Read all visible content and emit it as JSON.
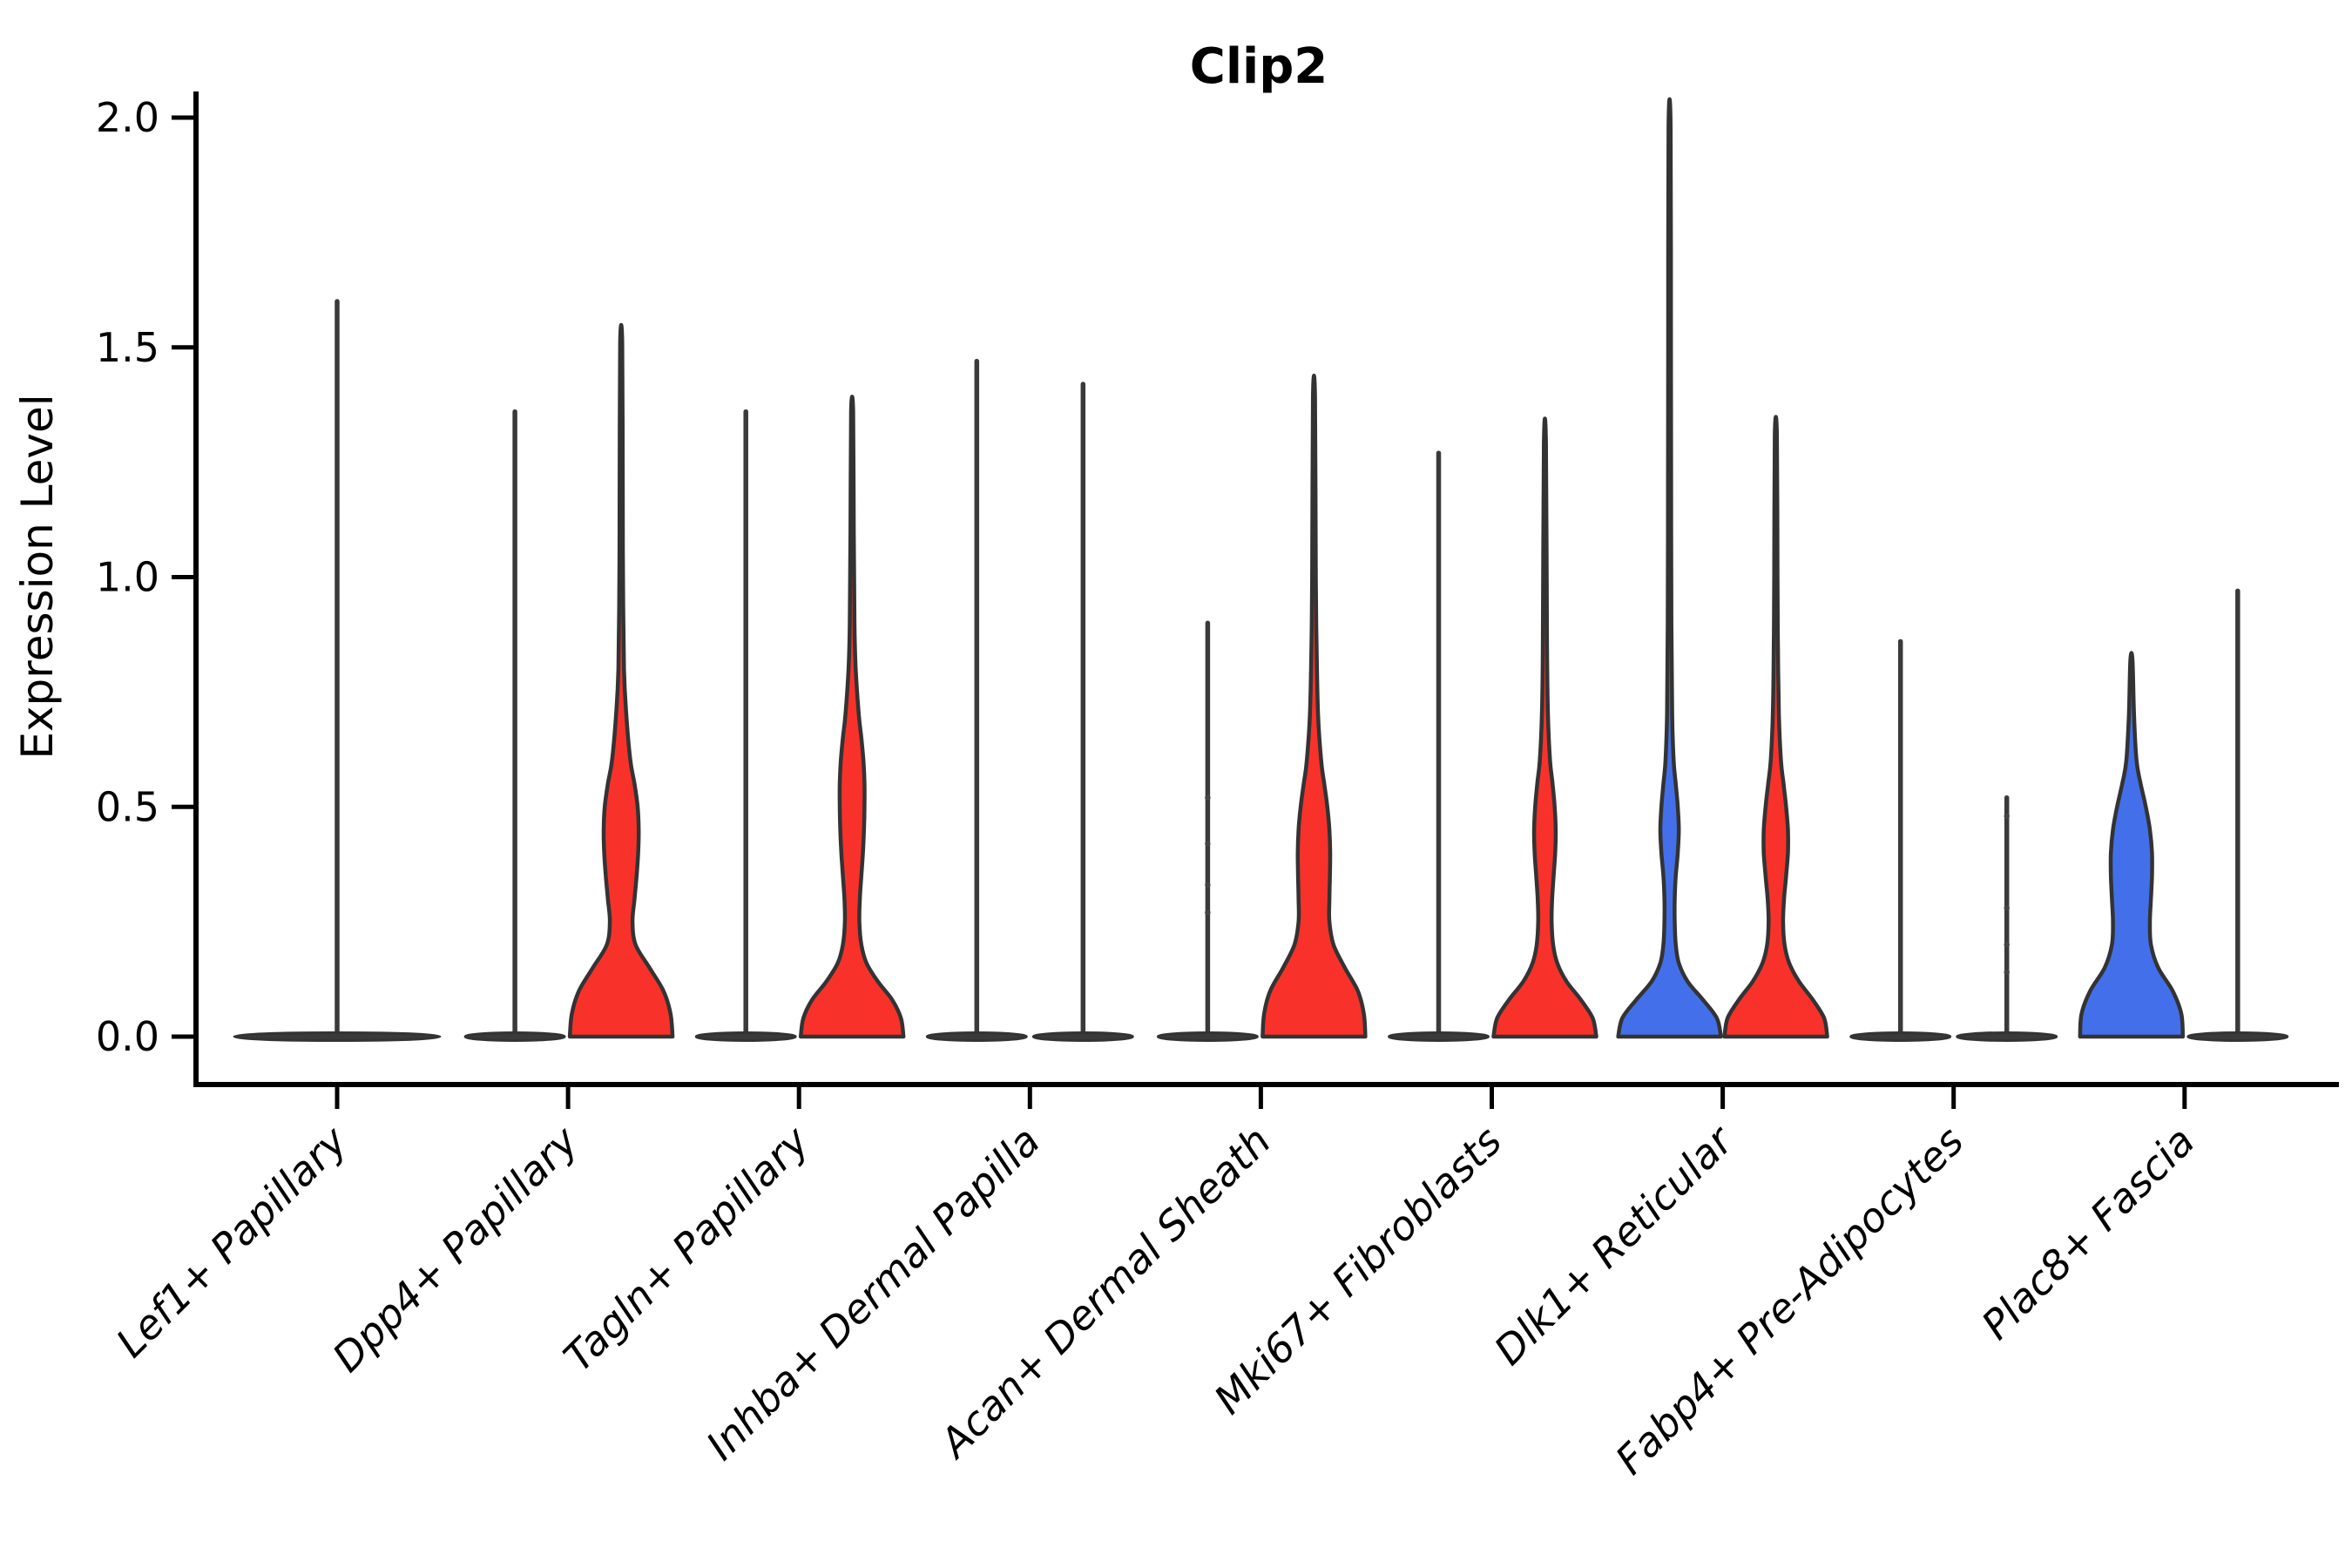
{
  "title": "Clip2",
  "ylabel": "Expression Level",
  "chart_data": {
    "type": "violin",
    "title": "Clip2",
    "xlabel": "",
    "ylabel": "Expression Level",
    "ylim": [
      0.0,
      2.0
    ],
    "yticks": [
      0.0,
      0.5,
      1.0,
      1.5,
      2.0
    ],
    "ytick_labels": [
      "0.0",
      "0.5",
      "1.0",
      "1.5",
      "2.0"
    ],
    "grid": false,
    "legend": "none",
    "categories": [
      "Lef1+ Papillary",
      "Dpp4+ Papillary",
      "Tagln+ Papillary",
      "Inhba+ Dermal Papilla",
      "Acan+ Dermal Sheath",
      "Mki67+ Fibroblasts",
      "Dlk1+ Reticular",
      "Fabp4+ Pre-Adipocytes",
      "Plac8+ Fascia"
    ],
    "colors": {
      "red": "#F8322B",
      "blue": "#4370EA",
      "flat_fill": "#3a3a3a",
      "outline": "#333333",
      "axis": "#000000"
    },
    "violins": [
      {
        "cat": 0,
        "position": "center",
        "color": "flat",
        "max": 1.6,
        "flat": true,
        "dots": []
      },
      {
        "cat": 1,
        "position": "left",
        "color": "flat",
        "max": 1.36,
        "flat": true,
        "dots": []
      },
      {
        "cat": 1,
        "position": "right",
        "color": "red",
        "max": 1.51,
        "flat": false,
        "dots": [],
        "profile": [
          [
            0,
            1.0
          ],
          [
            0.05,
            0.96
          ],
          [
            0.1,
            0.82
          ],
          [
            0.15,
            0.55
          ],
          [
            0.2,
            0.28
          ],
          [
            0.25,
            0.22
          ],
          [
            0.3,
            0.26
          ],
          [
            0.35,
            0.3
          ],
          [
            0.4,
            0.33
          ],
          [
            0.45,
            0.34
          ],
          [
            0.5,
            0.32
          ],
          [
            0.55,
            0.26
          ],
          [
            0.6,
            0.18
          ],
          [
            0.7,
            0.1
          ],
          [
            0.8,
            0.055
          ],
          [
            1.0,
            0.035
          ],
          [
            1.2,
            0.03
          ],
          [
            1.51,
            0.02
          ]
        ]
      },
      {
        "cat": 2,
        "position": "left",
        "color": "flat",
        "max": 1.36,
        "flat": true,
        "dots": []
      },
      {
        "cat": 2,
        "position": "right",
        "color": "red",
        "max": 1.36,
        "flat": false,
        "dots": [],
        "profile": [
          [
            0,
            1.0
          ],
          [
            0.04,
            0.95
          ],
          [
            0.08,
            0.78
          ],
          [
            0.12,
            0.5
          ],
          [
            0.16,
            0.28
          ],
          [
            0.2,
            0.18
          ],
          [
            0.25,
            0.14
          ],
          [
            0.3,
            0.15
          ],
          [
            0.35,
            0.18
          ],
          [
            0.4,
            0.21
          ],
          [
            0.45,
            0.23
          ],
          [
            0.5,
            0.24
          ],
          [
            0.55,
            0.24
          ],
          [
            0.6,
            0.22
          ],
          [
            0.65,
            0.18
          ],
          [
            0.7,
            0.13
          ],
          [
            0.8,
            0.07
          ],
          [
            0.9,
            0.045
          ],
          [
            1.1,
            0.032
          ],
          [
            1.36,
            0.02
          ]
        ]
      },
      {
        "cat": 3,
        "position": "left",
        "color": "flat",
        "max": 1.47,
        "flat": true,
        "dots": []
      },
      {
        "cat": 3,
        "position": "right",
        "color": "flat",
        "max": 1.42,
        "flat": true,
        "dots": []
      },
      {
        "cat": 4,
        "position": "left",
        "color": "flat",
        "max": 0.9,
        "flat": true,
        "dots": [
          0.27,
          0.33,
          0.42,
          0.52
        ]
      },
      {
        "cat": 4,
        "position": "right",
        "color": "red",
        "max": 1.39,
        "flat": false,
        "dots": [],
        "profile": [
          [
            0,
            1.0
          ],
          [
            0.05,
            0.97
          ],
          [
            0.1,
            0.85
          ],
          [
            0.15,
            0.6
          ],
          [
            0.2,
            0.38
          ],
          [
            0.25,
            0.3
          ],
          [
            0.3,
            0.3
          ],
          [
            0.35,
            0.31
          ],
          [
            0.4,
            0.315
          ],
          [
            0.45,
            0.3
          ],
          [
            0.5,
            0.26
          ],
          [
            0.55,
            0.2
          ],
          [
            0.6,
            0.14
          ],
          [
            0.7,
            0.08
          ],
          [
            0.85,
            0.05
          ],
          [
            1.0,
            0.035
          ],
          [
            1.39,
            0.02
          ]
        ]
      },
      {
        "cat": 5,
        "position": "left",
        "color": "flat",
        "max": 1.27,
        "flat": true,
        "dots": []
      },
      {
        "cat": 5,
        "position": "right",
        "color": "red",
        "max": 1.29,
        "flat": false,
        "dots": [],
        "profile": [
          [
            0,
            1.0
          ],
          [
            0.04,
            0.93
          ],
          [
            0.08,
            0.7
          ],
          [
            0.12,
            0.42
          ],
          [
            0.16,
            0.24
          ],
          [
            0.2,
            0.16
          ],
          [
            0.25,
            0.13
          ],
          [
            0.3,
            0.14
          ],
          [
            0.35,
            0.17
          ],
          [
            0.4,
            0.2
          ],
          [
            0.45,
            0.21
          ],
          [
            0.5,
            0.19
          ],
          [
            0.55,
            0.15
          ],
          [
            0.6,
            0.1
          ],
          [
            0.7,
            0.06
          ],
          [
            0.85,
            0.04
          ],
          [
            1.29,
            0.02
          ]
        ]
      },
      {
        "cat": 6,
        "position": "left",
        "color": "blue",
        "max": 1.98,
        "flat": false,
        "dots": [],
        "profile": [
          [
            0,
            1.0
          ],
          [
            0.04,
            0.92
          ],
          [
            0.08,
            0.65
          ],
          [
            0.12,
            0.35
          ],
          [
            0.16,
            0.18
          ],
          [
            0.2,
            0.12
          ],
          [
            0.25,
            0.1
          ],
          [
            0.3,
            0.1
          ],
          [
            0.35,
            0.12
          ],
          [
            0.4,
            0.16
          ],
          [
            0.45,
            0.18
          ],
          [
            0.5,
            0.16
          ],
          [
            0.55,
            0.12
          ],
          [
            0.6,
            0.08
          ],
          [
            0.7,
            0.05
          ],
          [
            0.9,
            0.035
          ],
          [
            1.2,
            0.03
          ],
          [
            1.5,
            0.027
          ],
          [
            1.98,
            0.02
          ]
        ]
      },
      {
        "cat": 6,
        "position": "right",
        "color": "red",
        "max": 1.31,
        "flat": false,
        "dots": [],
        "profile": [
          [
            0,
            1.0
          ],
          [
            0.04,
            0.94
          ],
          [
            0.08,
            0.72
          ],
          [
            0.12,
            0.45
          ],
          [
            0.16,
            0.26
          ],
          [
            0.2,
            0.17
          ],
          [
            0.25,
            0.14
          ],
          [
            0.3,
            0.16
          ],
          [
            0.35,
            0.2
          ],
          [
            0.4,
            0.235
          ],
          [
            0.45,
            0.235
          ],
          [
            0.5,
            0.2
          ],
          [
            0.55,
            0.15
          ],
          [
            0.6,
            0.1
          ],
          [
            0.7,
            0.06
          ],
          [
            0.85,
            0.04
          ],
          [
            1.0,
            0.032
          ],
          [
            1.31,
            0.02
          ]
        ]
      },
      {
        "cat": 7,
        "position": "left",
        "color": "flat",
        "max": 0.86,
        "flat": true,
        "dots": []
      },
      {
        "cat": 7,
        "position": "right",
        "color": "flat",
        "max": 0.52,
        "flat": true,
        "dots": [
          0.14,
          0.2,
          0.28,
          0.48
        ]
      },
      {
        "cat": 8,
        "position": "left",
        "color": "blue",
        "max": 0.82,
        "flat": false,
        "dots": [],
        "profile": [
          [
            0,
            1.0
          ],
          [
            0.05,
            0.97
          ],
          [
            0.1,
            0.8
          ],
          [
            0.15,
            0.52
          ],
          [
            0.2,
            0.38
          ],
          [
            0.25,
            0.36
          ],
          [
            0.3,
            0.38
          ],
          [
            0.35,
            0.4
          ],
          [
            0.4,
            0.4
          ],
          [
            0.45,
            0.36
          ],
          [
            0.5,
            0.28
          ],
          [
            0.55,
            0.18
          ],
          [
            0.6,
            0.1
          ],
          [
            0.7,
            0.05
          ],
          [
            0.82,
            0.02
          ]
        ]
      },
      {
        "cat": 8,
        "position": "right",
        "color": "flat",
        "max": 0.97,
        "flat": true,
        "dots": []
      }
    ]
  }
}
